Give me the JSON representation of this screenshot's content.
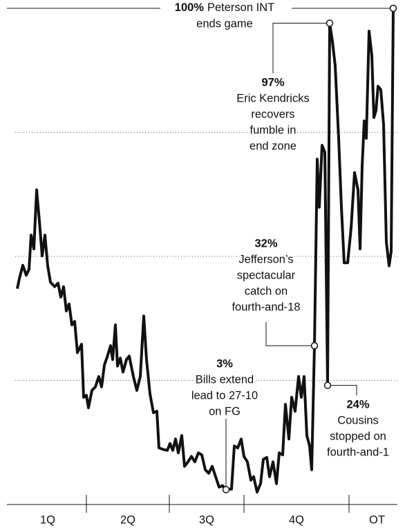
{
  "chart_data": {
    "type": "line",
    "color": "#111111",
    "x": [
      0,
      3,
      8,
      13,
      17,
      20,
      24,
      28,
      32,
      36,
      40,
      44,
      48,
      54,
      59,
      63,
      67,
      71,
      75,
      79,
      83,
      87,
      93,
      96,
      100,
      103,
      108,
      113,
      118,
      122,
      126,
      130,
      135,
      138,
      142,
      145,
      149,
      153,
      158,
      162,
      168,
      173,
      178,
      183,
      187,
      192,
      197,
      202,
      205,
      211,
      217,
      221,
      225,
      229,
      233,
      238,
      242,
      247,
      252,
      257,
      262,
      267,
      272,
      277,
      282,
      287,
      292,
      297,
      302,
      306,
      310,
      314,
      319,
      324,
      328,
      333,
      338,
      342,
      347,
      352,
      356,
      361,
      365,
      370,
      375,
      379,
      384,
      388,
      393,
      397,
      402,
      407,
      411,
      415,
      419,
      423,
      426,
      430,
      434,
      437,
      441,
      445,
      449,
      452,
      456,
      460,
      465,
      469,
      473,
      478,
      483,
      488,
      493,
      496,
      499,
      502,
      505,
      509,
      513,
      516,
      519,
      522,
      526,
      530,
      534,
      538,
      541,
      544
    ],
    "values": [
      43.5,
      45.5,
      48.2,
      46.2,
      47.4,
      54.3,
      51.5,
      63.4,
      57.1,
      50.1,
      54.3,
      48.1,
      44.8,
      43.9,
      44.6,
      41.8,
      43.9,
      39.0,
      40.4,
      36.2,
      36.9,
      30.6,
      32.3,
      21.6,
      22.0,
      19.5,
      23.0,
      23.7,
      25.8,
      23.7,
      28.1,
      29.7,
      32.0,
      29.2,
      36.2,
      27.9,
      29.5,
      26.7,
      29.2,
      29.9,
      25.8,
      23.0,
      25.8,
      38.0,
      29.2,
      22.3,
      18.5,
      18.8,
      11.4,
      11.1,
      10.9,
      12.3,
      10.9,
      13.2,
      10.4,
      13.9,
      7.7,
      8.6,
      9.7,
      8.6,
      10.4,
      10.0,
      7.0,
      6.3,
      7.7,
      5.6,
      3.5,
      3.8,
      3,
      3.1,
      3.1,
      11.8,
      11.4,
      13.2,
      9.7,
      8.6,
      4.9,
      5.6,
      2.5,
      4.2,
      9.1,
      9.5,
      5.6,
      8.6,
      4.2,
      10.4,
      10.0,
      20.2,
      13.2,
      21.6,
      18.8,
      25.8,
      21.6,
      25.8,
      13.9,
      11.8,
      7.0,
      32,
      69.6,
      59.9,
      72.4,
      71.0,
      24,
      97,
      93.3,
      88.4,
      73.8,
      59.9,
      48.7,
      48.7,
      55.7,
      66.9,
      63.4,
      51.5,
      68.2,
      77.3,
      73.8,
      95.4,
      90.5,
      78.0,
      79.4,
      84.3,
      83.6,
      76.6,
      52.9,
      48.1,
      51.0,
      100
    ],
    "xlim": [
      0,
      545
    ],
    "xticks": [
      100,
      220,
      328,
      480
    ],
    "categories": [
      "1Q",
      "2Q",
      "3Q",
      "4Q",
      "OT"
    ],
    "ylim": [
      0,
      100
    ],
    "yticks": [
      25,
      50,
      75
    ],
    "grid": true,
    "annotations": [
      {
        "label": "100%",
        "lines": [
          "Peterson INT",
          "ends game"
        ]
      },
      {
        "label": "97%",
        "lines": [
          "Eric Kendricks",
          "recovers",
          "fumble in",
          "end zone"
        ]
      },
      {
        "label": "32%",
        "lines": [
          "Jefferson’s",
          "spectacular",
          "catch on",
          "fourth-and-18"
        ]
      },
      {
        "label": "3%",
        "lines": [
          "Bills extend",
          "lead to 27-10",
          "on FG"
        ]
      },
      {
        "label": "24%",
        "lines": [
          "Cousins",
          "stopped on",
          "fourth-and-1"
        ]
      }
    ]
  }
}
